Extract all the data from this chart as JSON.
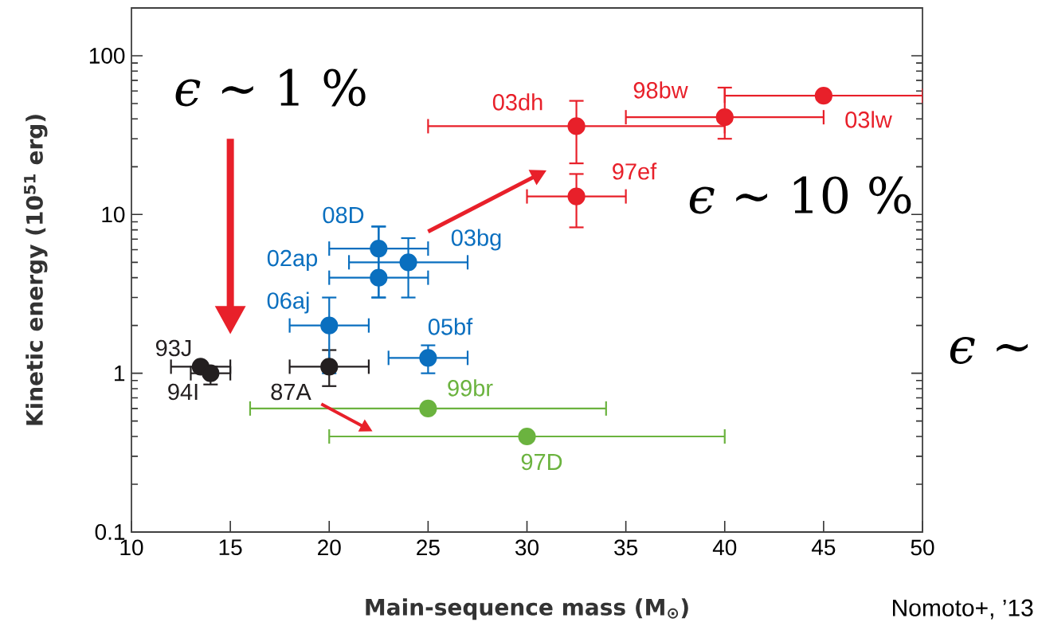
{
  "chart_data": {
    "type": "scatter",
    "xlabel": "Main-sequence mass (M$_{⊙}$)",
    "ylabel": "Kinetic energy (10$^{51}$ erg)",
    "xlim": [
      10,
      50
    ],
    "ylim": [
      0.1,
      200
    ],
    "xticks": [
      10,
      15,
      20,
      25,
      30,
      35,
      40,
      45,
      50
    ],
    "yticks": [
      0.1,
      1,
      10,
      100
    ],
    "log": "y",
    "marker": "circle",
    "series": [
      {
        "color": "#231f20",
        "x": [
          13.5,
          14,
          20
        ],
        "values": [
          1.1,
          1.0,
          1.1
        ],
        "errors": [
          null,
          [
            0.85,
            1.1
          ],
          [
            0.83,
            1.4
          ]
        ],
        "xerrors": [
          [
            12,
            15
          ],
          [
            13,
            15
          ],
          [
            18,
            22
          ]
        ]
      },
      {
        "color": "#0a6fbf",
        "x": [
          22.5,
          22.5,
          24,
          20,
          25
        ],
        "values": [
          6.1,
          4.0,
          5.0,
          2.0,
          1.25
        ],
        "errors": [
          [
            3.0,
            8.4
          ],
          [
            3.0,
            8.4
          ],
          [
            3.0,
            7.1
          ],
          [
            1.0,
            3.0
          ],
          [
            1.0,
            1.5
          ]
        ],
        "xerrors": [
          [
            20,
            25
          ],
          [
            20,
            25
          ],
          [
            21,
            27
          ],
          [
            18,
            22
          ],
          [
            23,
            27
          ]
        ]
      },
      {
        "color": "#6bb33f",
        "x": [
          25,
          30
        ],
        "values": [
          0.6,
          0.4
        ],
        "errors": [
          null,
          null
        ],
        "xerrors": [
          [
            16,
            34
          ],
          [
            20,
            40
          ]
        ]
      },
      {
        "color": "#e8202a",
        "x": [
          32.5,
          32.5,
          40,
          45
        ],
        "values": [
          36,
          13,
          41,
          56
        ],
        "errors": [
          [
            21,
            52
          ],
          [
            8.3,
            18
          ],
          [
            30,
            63
          ],
          null
        ],
        "xerrors": [
          [
            25,
            40
          ],
          [
            30,
            35
          ],
          [
            35,
            45
          ],
          [
            40,
            50
          ]
        ]
      }
    ],
    "annotations": [
      "*ϵ* ∼ 1 %",
      "*ϵ* ∼ 10 %",
      "*ϵ* ∼",
      "Nomoto+, ’13",
      "93J",
      "94I",
      "87A",
      "08D",
      "02ap",
      "06aj",
      "03bg",
      "05bf",
      "99br",
      "97D",
      "03dh",
      "98bw",
      "03lw",
      "97ef"
    ]
  }
}
